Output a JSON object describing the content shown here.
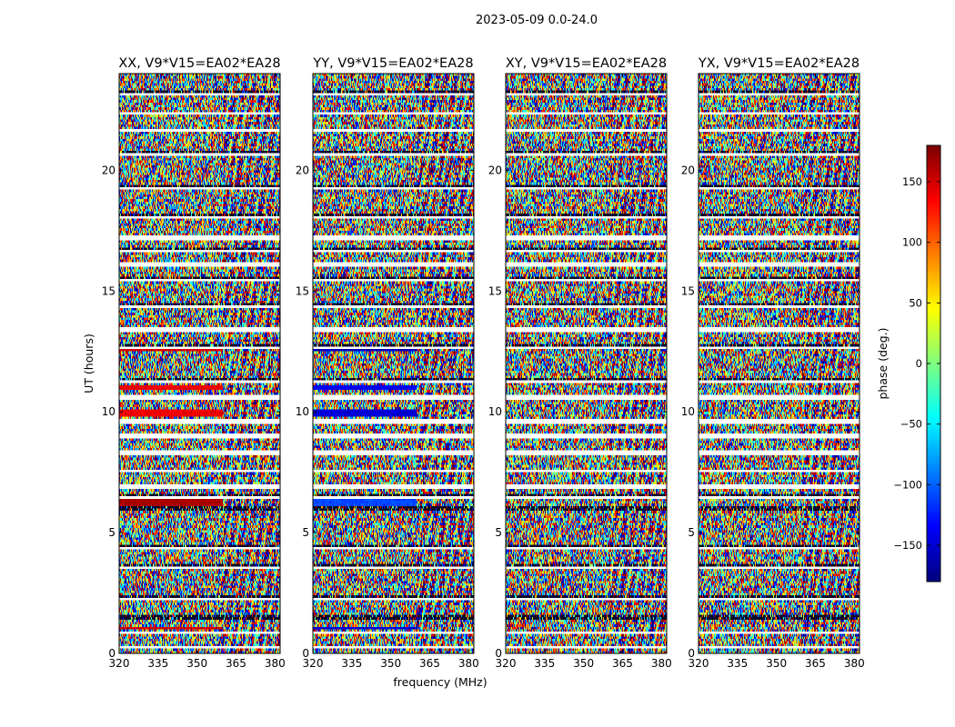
{
  "figure": {
    "suptitle": "2023-05-09 0.0-24.0",
    "xlabel": "frequency (MHz)",
    "ylabel": "UT (hours)"
  },
  "colors": {
    "jet": [
      "#00007f",
      "#0000ff",
      "#007fff",
      "#00ffff",
      "#7fff7f",
      "#ffff00",
      "#ff7f00",
      "#ff0000",
      "#7f0000"
    ],
    "frame": "#000000",
    "background": "#ffffff"
  },
  "chart_data": {
    "type": "heatmap",
    "title": "2023-05-09 0.0-24.0",
    "xlabel": "frequency (MHz)",
    "ylabel": "UT (hours)",
    "xlim": [
      320,
      382
    ],
    "ylim": [
      0,
      24
    ],
    "xticks": [
      320,
      335,
      350,
      365,
      380
    ],
    "xtick_labels": [
      "320",
      "335",
      "350",
      "365",
      "380"
    ],
    "yticks": [
      0,
      5,
      10,
      15,
      20
    ],
    "ytick_labels": [
      "0",
      "5",
      "10",
      "15",
      "20"
    ],
    "panels": [
      {
        "title": "XX, V9*V15=EA02*EA28",
        "pol": "XX"
      },
      {
        "title": "YY, V9*V15=EA02*EA28",
        "pol": "YY"
      },
      {
        "title": "XY, V9*V15=EA02*EA28",
        "pol": "XY"
      },
      {
        "title": "YX, V9*V15=EA02*EA28",
        "pol": "YX"
      }
    ],
    "gaps_ut_hours": [
      [
        0.22,
        0.3
      ],
      [
        0.8,
        0.87
      ],
      [
        1.45,
        1.55
      ],
      [
        2.25,
        2.32
      ],
      [
        3.55,
        3.62
      ],
      [
        4.35,
        4.42
      ],
      [
        5.95,
        6.05
      ],
      [
        6.4,
        6.55
      ],
      [
        6.85,
        6.95
      ],
      [
        7.5,
        7.6
      ],
      [
        8.25,
        8.35
      ],
      [
        8.95,
        9.05
      ],
      [
        9.55,
        9.65
      ],
      [
        10.55,
        10.65
      ],
      [
        11.25,
        11.32
      ],
      [
        12.65,
        12.72
      ],
      [
        13.35,
        13.45
      ],
      [
        14.35,
        14.42
      ],
      [
        15.4,
        15.52
      ],
      [
        16.05,
        16.15
      ],
      [
        16.6,
        16.72
      ],
      [
        17.15,
        17.25
      ],
      [
        18.05,
        18.12
      ],
      [
        19.25,
        19.32
      ],
      [
        20.65,
        20.72
      ],
      [
        21.6,
        21.67
      ],
      [
        22.3,
        22.37
      ],
      [
        23.1,
        23.22
      ]
    ],
    "strong_rfi_stripes": [
      {
        "panel": "XX",
        "ut": [
          6.1,
          6.4
        ],
        "phase_deg": 165
      },
      {
        "panel": "YY",
        "ut": [
          6.1,
          6.4
        ],
        "phase_deg": -110
      },
      {
        "panel": "XX",
        "ut": [
          9.8,
          10.05
        ],
        "phase_deg": 140
      },
      {
        "panel": "YY",
        "ut": [
          9.8,
          10.05
        ],
        "phase_deg": -150
      },
      {
        "panel": "XX",
        "ut": [
          10.9,
          11.1
        ],
        "phase_deg": 140
      },
      {
        "panel": "YY",
        "ut": [
          10.9,
          11.1
        ],
        "phase_deg": -140
      },
      {
        "panel": "XX",
        "ut": [
          12.5,
          12.6
        ],
        "phase_deg": 150
      },
      {
        "panel": "YY",
        "ut": [
          12.5,
          12.6
        ],
        "phase_deg": -160
      },
      {
        "panel": "XX",
        "ut": [
          1.0,
          1.1
        ],
        "phase_deg": 150
      },
      {
        "panel": "YY",
        "ut": [
          1.0,
          1.1
        ],
        "phase_deg": -150
      }
    ],
    "colorbar": {
      "label": "phase (deg.)",
      "range": [
        -180,
        180
      ],
      "ticks": [
        150,
        100,
        50,
        0,
        -50,
        -100,
        -150
      ],
      "tick_labels": [
        "150",
        "100",
        "50",
        "0",
        "−50",
        "−100",
        "−150"
      ],
      "colormap": "jet"
    }
  }
}
